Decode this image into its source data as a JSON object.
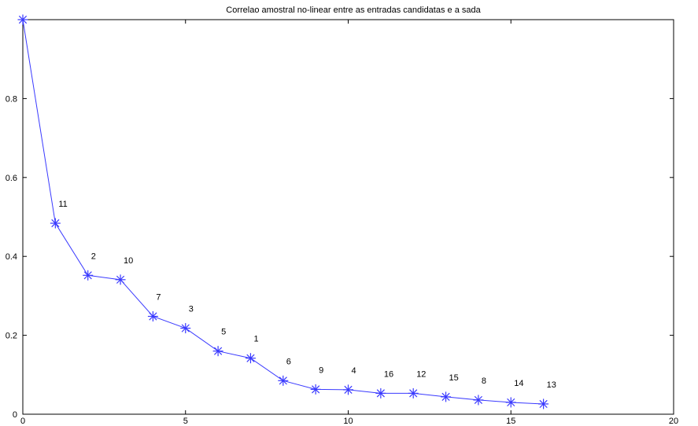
{
  "chart_data": {
    "type": "line",
    "title": "Correlao amostral no-linear entre as entradas candidatas e a sada",
    "xlabel": "",
    "ylabel": "",
    "xlim": [
      0,
      20
    ],
    "ylim": [
      0,
      1
    ],
    "xticks": [
      0,
      5,
      10,
      15,
      20
    ],
    "yticks": [
      0,
      0.2,
      0.4,
      0.6,
      0.8
    ],
    "grid": false,
    "colors": {
      "series": "#3a3aff",
      "axes": "#000000"
    },
    "marker": "asterisk",
    "series": [
      {
        "x": [
          0,
          1,
          2,
          3,
          4,
          5,
          6,
          7,
          8,
          9,
          10,
          11,
          12,
          13,
          14,
          15,
          16
        ],
        "y": [
          1.0,
          0.484,
          0.352,
          0.341,
          0.248,
          0.218,
          0.16,
          0.142,
          0.085,
          0.063,
          0.062,
          0.053,
          0.053,
          0.044,
          0.036,
          0.03,
          0.026
        ],
        "labels": [
          "",
          "11",
          "2",
          "10",
          "7",
          "3",
          "5",
          "1",
          "6",
          "9",
          "4",
          "16",
          "12",
          "15",
          "8",
          "14",
          "13"
        ]
      }
    ]
  }
}
